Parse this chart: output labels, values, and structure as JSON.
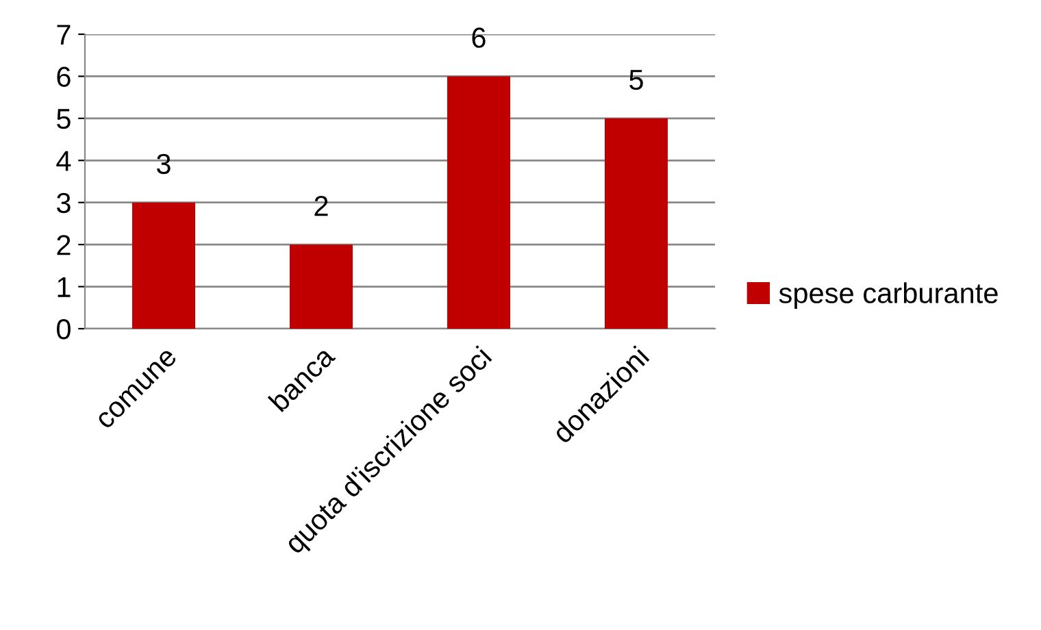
{
  "chart_data": {
    "type": "bar",
    "categories": [
      "comune",
      "banca",
      "quota d'iscrizione soci",
      "donazioni"
    ],
    "series": [
      {
        "name": "spese carburante",
        "color": "#c00000",
        "values": [
          3,
          2,
          6,
          5
        ]
      }
    ],
    "ylim": [
      0,
      7
    ],
    "yticks": [
      0,
      1,
      2,
      3,
      4,
      5,
      6,
      7
    ],
    "grid": "y",
    "legend": "right",
    "data_labels": true
  }
}
